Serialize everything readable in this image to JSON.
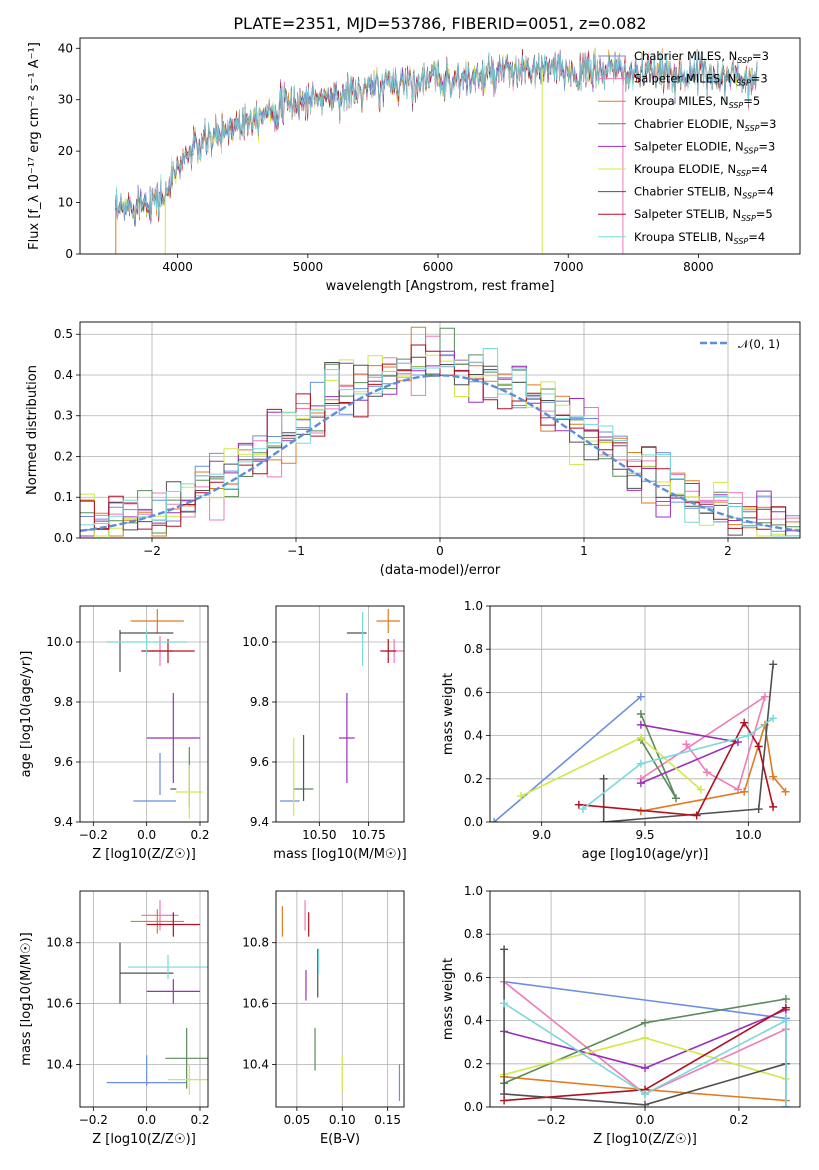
{
  "title": "PLATE=2351, MJD=53786, FIBERID=0051, z=0.082",
  "colors": {
    "Chabrier MILES": "#6a8ee0",
    "Salpeter MILES": "#f07ab8",
    "Kroupa MILES": "#e07b1f",
    "Chabrier ELODIE": "#5b8a5b",
    "Salpeter ELODIE": "#9b30b8",
    "Kroupa ELODIE": "#d0e84a",
    "Chabrier STELIB": "#505050",
    "Salpeter STELIB": "#b01020",
    "Kroupa STELIB": "#7ad8d8"
  },
  "chart_data": [
    {
      "type": "line",
      "name": "spectrum",
      "xlabel": "wavelength [Angstrom, rest frame]",
      "ylabel": "Flux [f_λ 10⁻¹⁷ erg cm⁻² s⁻¹ A⁻¹]",
      "xlim": [
        3250,
        8780
      ],
      "ylim": [
        0,
        42
      ],
      "xticks": [
        "4000",
        "5000",
        "6000",
        "7000",
        "8000"
      ],
      "yticks": [
        "0",
        "10",
        "20",
        "30",
        "40"
      ],
      "legend_position": "right",
      "legend": [
        {
          "model": "Chabrier MILES",
          "nssp": "3"
        },
        {
          "model": "Salpeter MILES",
          "nssp": "3"
        },
        {
          "model": "Kroupa MILES",
          "nssp": "5"
        },
        {
          "model": "Chabrier ELODIE",
          "nssp": "3"
        },
        {
          "model": "Salpeter ELODIE",
          "nssp": "3"
        },
        {
          "model": "Kroupa ELODIE",
          "nssp": "4"
        },
        {
          "model": "Chabrier STELIB",
          "nssp": "4"
        },
        {
          "model": "Salpeter STELIB",
          "nssp": "5"
        },
        {
          "model": "Kroupa STELIB",
          "nssp": "4"
        }
      ],
      "continuum": {
        "x": [
          3520,
          3700,
          3900,
          4000,
          4100,
          4300,
          4500,
          4700,
          5000,
          5300,
          5600,
          5900,
          6200,
          6500,
          6800,
          7100,
          7300,
          7500,
          7800,
          8100,
          8400
        ],
        "y": [
          8,
          10,
          11,
          17,
          20,
          23,
          26,
          28,
          30,
          31,
          33,
          34,
          34,
          35,
          36,
          35,
          36,
          35,
          35,
          35,
          34
        ]
      },
      "spectrum_range": [
        3520,
        8450
      ]
    },
    {
      "type": "step",
      "name": "residual histogram",
      "xlabel": "(data-model)/error",
      "ylabel": "Normed distribution",
      "xlim": [
        -2.5,
        2.5
      ],
      "ylim": [
        0,
        0.53
      ],
      "xticks": [
        "-2",
        "-1",
        "0",
        "1",
        "2"
      ],
      "yticks": [
        "0.0",
        "0.1",
        "0.2",
        "0.3",
        "0.4",
        "0.5"
      ],
      "legend_label": "𝒩(0, 1)",
      "legend_position": "top-right",
      "bin_width": 0.1,
      "grid": true
    },
    {
      "type": "scatter",
      "name": "age vs Z",
      "xlabel": "Z [log10(Z/Z☉)]",
      "ylabel": "age [log10(age/yr)]",
      "xlim": [
        -0.25,
        0.23
      ],
      "ylim": [
        9.4,
        10.12
      ],
      "xticks": [
        "-0.2",
        "0.0",
        "0.2"
      ],
      "yticks": [
        "9.4",
        "9.6",
        "9.8",
        "10.0"
      ],
      "points": [
        {
          "model": "Chabrier MILES",
          "x": 0.03,
          "xerr": 0.08,
          "y": 9.47,
          "yerr": 0.0
        },
        {
          "model": "Chabrier MILES",
          "x": 0.05,
          "xerr": 0.0,
          "y": 9.56,
          "yerr": 0.07
        },
        {
          "model": "Salpeter MILES",
          "x": 0.05,
          "xerr": 0.05,
          "y": 9.97,
          "yerr": 0.05
        },
        {
          "model": "Kroupa MILES",
          "x": 0.04,
          "xerr": 0.1,
          "y": 10.07,
          "yerr": 0.04
        },
        {
          "model": "Chabrier ELODIE",
          "x": 0.16,
          "xerr": 0.0,
          "y": 9.55,
          "yerr": 0.1
        },
        {
          "model": "Salpeter ELODIE",
          "x": 0.1,
          "xerr": 0.1,
          "y": 9.68,
          "yerr": 0.15
        },
        {
          "model": "Kroupa ELODIE",
          "x": 0.16,
          "xerr": 0.05,
          "y": 9.5,
          "yerr": 0.09
        },
        {
          "model": "Chabrier STELIB",
          "x": -0.1,
          "xerr": 0.0,
          "y": 9.97,
          "yerr": 0.07
        },
        {
          "model": "Chabrier STELIB",
          "x": 0.0,
          "xerr": 0.1,
          "y": 10.03,
          "yerr": 0.0
        },
        {
          "model": "Chabrier STELIB",
          "x": 0.1,
          "xerr": 0.0,
          "y": 9.51,
          "yerr": 0.0
        },
        {
          "model": "Salpeter STELIB",
          "x": 0.08,
          "xerr": 0.1,
          "y": 9.97,
          "yerr": 0.04
        },
        {
          "model": "Kroupa STELIB",
          "x": 0.0,
          "xerr": 0.15,
          "y": 10.0,
          "yerr": 0.04
        }
      ]
    },
    {
      "type": "scatter",
      "name": "age vs mass",
      "xlabel": "mass [log10(M/M☉)]",
      "ylabel": "",
      "xlim": [
        10.28,
        10.93
      ],
      "ylim": [
        9.4,
        10.12
      ],
      "xticks": [
        "10.50",
        "10.75"
      ],
      "yticks": [
        "9.4",
        "9.6",
        "9.8",
        "10.0"
      ],
      "points": [
        {
          "model": "Chabrier MILES",
          "x": 10.35,
          "xerr": 0.05,
          "y": 9.47,
          "yerr": 0.0
        },
        {
          "model": "Salpeter MILES",
          "x": 10.88,
          "xerr": 0.05,
          "y": 9.97,
          "yerr": 0.04
        },
        {
          "model": "Kroupa MILES",
          "x": 10.85,
          "xerr": 0.06,
          "y": 10.07,
          "yerr": 0.04
        },
        {
          "model": "Chabrier ELODIE",
          "x": 10.42,
          "xerr": 0.05,
          "y": 9.51,
          "yerr": 0.0
        },
        {
          "model": "Salpeter ELODIE",
          "x": 10.64,
          "xerr": 0.04,
          "y": 9.68,
          "yerr": 0.15
        },
        {
          "model": "Kroupa ELODIE",
          "x": 10.37,
          "xerr": 0.0,
          "y": 9.55,
          "yerr": 0.13
        },
        {
          "model": "Chabrier STELIB",
          "x": 10.42,
          "xerr": 0.0,
          "y": 9.58,
          "yerr": 0.11
        },
        {
          "model": "Chabrier STELIB",
          "x": 10.69,
          "xerr": 0.05,
          "y": 10.03,
          "yerr": 0.0
        },
        {
          "model": "Salpeter STELIB",
          "x": 10.85,
          "xerr": 0.04,
          "y": 9.97,
          "yerr": 0.04
        },
        {
          "model": "Kroupa STELIB",
          "x": 10.72,
          "xerr": 0.0,
          "y": 10.01,
          "yerr": 0.09
        }
      ]
    },
    {
      "type": "line",
      "name": "mass weight vs age",
      "xlabel": "age [log10(age/yr)]",
      "ylabel": "mass weight",
      "xlim": [
        8.75,
        10.25
      ],
      "ylim": [
        0,
        1
      ],
      "xticks": [
        "9.0",
        "9.5",
        "10.0"
      ],
      "yticks": [
        "0.0",
        "0.2",
        "0.4",
        "0.6",
        "0.8",
        "1.0"
      ],
      "series": [
        {
          "model": "Chabrier MILES",
          "x": [
            8.77,
            9.48
          ],
          "y": [
            0.0,
            0.58
          ]
        },
        {
          "model": "Salpeter MILES",
          "x": [
            9.7,
            9.8,
            9.95,
            10.08,
            9.48
          ],
          "y": [
            0.36,
            0.23,
            0.15,
            0.58,
            0.2
          ]
        },
        {
          "model": "Kroupa MILES",
          "x": [
            9.48,
            9.98,
            10.08,
            10.12,
            10.18
          ],
          "y": [
            0.05,
            0.14,
            0.45,
            0.21,
            0.14
          ]
        },
        {
          "model": "Chabrier ELODIE",
          "x": [
            9.48,
            9.65,
            9.48
          ],
          "y": [
            0.5,
            0.11,
            0.38
          ]
        },
        {
          "model": "Salpeter ELODIE",
          "x": [
            9.48,
            9.95,
            9.48
          ],
          "y": [
            0.18,
            0.37,
            0.45
          ]
        },
        {
          "model": "Kroupa ELODIE",
          "x": [
            8.9,
            9.48,
            9.77
          ],
          "y": [
            0.12,
            0.39,
            0.15
          ]
        },
        {
          "model": "Chabrier STELIB",
          "x": [
            9.3,
            9.3,
            10.05,
            10.12
          ],
          "y": [
            0.2,
            0.0,
            0.06,
            0.73
          ]
        },
        {
          "model": "Salpeter STELIB",
          "x": [
            9.18,
            9.75,
            9.98,
            10.05,
            10.12
          ],
          "y": [
            0.08,
            0.03,
            0.46,
            0.35,
            0.07
          ]
        },
        {
          "model": "Kroupa STELIB",
          "x": [
            9.2,
            9.48,
            10.0,
            10.12
          ],
          "y": [
            0.06,
            0.27,
            0.4,
            0.48
          ]
        }
      ]
    },
    {
      "type": "scatter",
      "name": "mass vs Z",
      "xlabel": "Z [log10(Z/Z☉)]",
      "ylabel": "mass [log10(M/M☉)]",
      "xlim": [
        -0.25,
        0.23
      ],
      "ylim": [
        10.26,
        10.97
      ],
      "xticks": [
        "-0.2",
        "0.0",
        "0.2"
      ],
      "yticks": [
        "10.4",
        "10.6",
        "10.8"
      ],
      "points": [
        {
          "model": "Chabrier MILES",
          "x": 0.0,
          "xerr": 0.15,
          "y": 10.34,
          "yerr": 0.0
        },
        {
          "model": "Chabrier MILES",
          "x": 0.0,
          "xerr": 0.0,
          "y": 10.38,
          "yerr": 0.05
        },
        {
          "model": "Salpeter MILES",
          "x": 0.05,
          "xerr": 0.07,
          "y": 10.89,
          "yerr": 0.05
        },
        {
          "model": "Kroupa MILES",
          "x": 0.04,
          "xerr": 0.1,
          "y": 10.87,
          "yerr": 0.04
        },
        {
          "model": "Chabrier ELODIE",
          "x": 0.15,
          "xerr": 0.08,
          "y": 10.42,
          "yerr": 0.1
        },
        {
          "model": "Salpeter ELODIE",
          "x": 0.1,
          "xerr": 0.1,
          "y": 10.64,
          "yerr": 0.04
        },
        {
          "model": "Kroupa ELODIE",
          "x": 0.16,
          "xerr": 0.08,
          "y": 10.35,
          "yerr": 0.05
        },
        {
          "model": "Chabrier STELIB",
          "x": 0.0,
          "xerr": 0.1,
          "y": 10.7,
          "yerr": 0.0
        },
        {
          "model": "Chabrier STELIB",
          "x": -0.1,
          "xerr": 0.0,
          "y": 10.7,
          "yerr": 0.1
        },
        {
          "model": "Salpeter STELIB",
          "x": 0.1,
          "xerr": 0.1,
          "y": 10.86,
          "yerr": 0.04
        },
        {
          "model": "Kroupa STELIB",
          "x": 0.08,
          "xerr": 0.15,
          "y": 10.72,
          "yerr": 0.04
        }
      ]
    },
    {
      "type": "scatter",
      "name": "mass vs E(B-V)",
      "xlabel": "E(B-V)",
      "ylabel": "",
      "xlim": [
        0.027,
        0.168
      ],
      "ylim": [
        10.26,
        10.97
      ],
      "xticks": [
        "0.05",
        "0.10",
        "0.15"
      ],
      "yticks": [
        "10.4",
        "10.6",
        "10.8"
      ],
      "points": [
        {
          "model": "Chabrier MILES",
          "x": 0.163,
          "xerr": 0.0,
          "y": 10.34,
          "yerr": 0.06
        },
        {
          "model": "Salpeter MILES",
          "x": 0.059,
          "xerr": 0.0,
          "y": 10.89,
          "yerr": 0.05
        },
        {
          "model": "Kroupa MILES",
          "x": 0.034,
          "xerr": 0.0,
          "y": 10.87,
          "yerr": 0.05
        },
        {
          "model": "Chabrier ELODIE",
          "x": 0.07,
          "xerr": 0.0,
          "y": 10.45,
          "yerr": 0.07
        },
        {
          "model": "Salpeter ELODIE",
          "x": 0.06,
          "xerr": 0.0,
          "y": 10.66,
          "yerr": 0.05
        },
        {
          "model": "Kroupa ELODIE",
          "x": 0.1,
          "xerr": 0.0,
          "y": 10.37,
          "yerr": 0.06
        },
        {
          "model": "Chabrier STELIB",
          "x": 0.073,
          "xerr": 0.0,
          "y": 10.7,
          "yerr": 0.08
        },
        {
          "model": "Salpeter STELIB",
          "x": 0.063,
          "xerr": 0.0,
          "y": 10.86,
          "yerr": 0.04
        },
        {
          "model": "Kroupa STELIB",
          "x": 0.074,
          "xerr": 0.0,
          "y": 10.74,
          "yerr": 0.04
        }
      ]
    },
    {
      "type": "line",
      "name": "mass weight vs Z",
      "xlabel": "Z [log10(Z/Z☉)]",
      "ylabel": "mass weight",
      "xlim": [
        -0.33,
        0.33
      ],
      "ylim": [
        0,
        1
      ],
      "xticks": [
        "-0.2",
        "0.0",
        "0.2"
      ],
      "yticks": [
        "0.0",
        "0.2",
        "0.4",
        "0.6",
        "0.8",
        "1.0"
      ],
      "series": [
        {
          "model": "Chabrier MILES",
          "x": [
            -0.3,
            0.3,
            0.3
          ],
          "y": [
            0.58,
            0.41,
            0.0
          ]
        },
        {
          "model": "Salpeter MILES",
          "x": [
            -0.3,
            0.0,
            0.3
          ],
          "y": [
            0.58,
            0.06,
            0.36
          ]
        },
        {
          "model": "Kroupa MILES",
          "x": [
            -0.3,
            0.0,
            0.3
          ],
          "y": [
            0.14,
            0.08,
            0.03
          ]
        },
        {
          "model": "Chabrier ELODIE",
          "x": [
            -0.3,
            0.0,
            0.3
          ],
          "y": [
            0.11,
            0.39,
            0.5
          ]
        },
        {
          "model": "Salpeter ELODIE",
          "x": [
            -0.3,
            0.0,
            0.3
          ],
          "y": [
            0.35,
            0.18,
            0.45
          ]
        },
        {
          "model": "Kroupa ELODIE",
          "x": [
            -0.3,
            0.0,
            0.3
          ],
          "y": [
            0.15,
            0.32,
            0.13
          ]
        },
        {
          "model": "Chabrier STELIB",
          "x": [
            -0.3,
            -0.3,
            0.0,
            0.3
          ],
          "y": [
            0.73,
            0.06,
            0.01,
            0.2
          ]
        },
        {
          "model": "Salpeter STELIB",
          "x": [
            -0.3,
            0.0,
            0.3
          ],
          "y": [
            0.03,
            0.08,
            0.46
          ]
        },
        {
          "model": "Kroupa STELIB",
          "x": [
            -0.3,
            0.0,
            0.3,
            0.3
          ],
          "y": [
            0.48,
            0.06,
            0.4,
            0.0
          ]
        }
      ]
    }
  ]
}
